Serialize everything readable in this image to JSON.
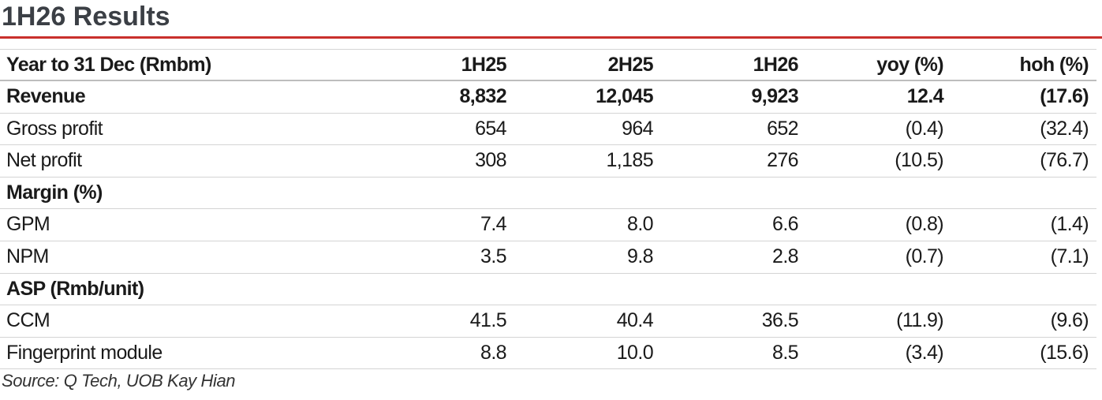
{
  "header": {
    "title": "1H26 Results"
  },
  "table": {
    "columns": [
      "Year to 31 Dec (Rmbm)",
      "1H25",
      "2H25",
      "1H26",
      "yoy (%)",
      "hoh (%)"
    ],
    "rows": [
      {
        "bold": true,
        "cells": [
          "Revenue",
          "8,832",
          "12,045",
          "9,923",
          "12.4",
          "(17.6)"
        ]
      },
      {
        "bold": false,
        "cells": [
          "Gross profit",
          "654",
          "964",
          "652",
          "(0.4)",
          "(32.4)"
        ]
      },
      {
        "bold": false,
        "cells": [
          "Net profit",
          "308",
          "1,185",
          "276",
          "(10.5)",
          "(76.7)"
        ]
      },
      {
        "bold": true,
        "cells": [
          "Margin (%)"
        ]
      },
      {
        "bold": false,
        "cells": [
          "GPM",
          "7.4",
          "8.0",
          "6.6",
          "(0.8)",
          "(1.4)"
        ]
      },
      {
        "bold": false,
        "cells": [
          "NPM",
          "3.5",
          "9.8",
          "2.8",
          "(0.7)",
          "(7.1)"
        ]
      },
      {
        "bold": true,
        "cells": [
          "ASP (Rmb/unit)"
        ]
      },
      {
        "bold": false,
        "cells": [
          "CCM",
          "41.5",
          "40.4",
          "36.5",
          "(11.9)",
          "(9.6)"
        ]
      },
      {
        "bold": false,
        "cells": [
          "Fingerprint module",
          "8.8",
          "10.0",
          "8.5",
          "(3.4)",
          "(15.6)"
        ]
      }
    ]
  },
  "footer": {
    "source": "Source: Q Tech, UOB Kay Hian"
  }
}
